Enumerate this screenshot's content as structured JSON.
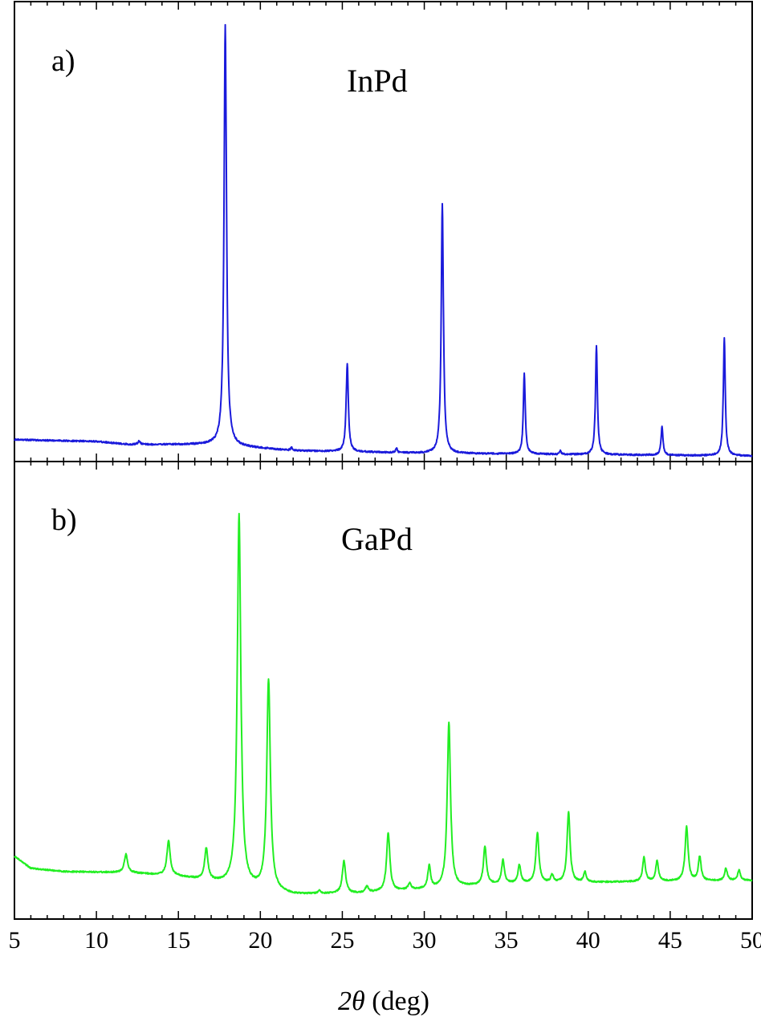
{
  "chart_data": {
    "type": "line",
    "xlabel_symbol": "2θ",
    "xlabel_unit": " (deg)",
    "xlim": [
      5,
      50
    ],
    "x_ticks": [
      5,
      10,
      15,
      20,
      25,
      30,
      35,
      40,
      45,
      50
    ],
    "x_tick_labels": [
      "5",
      "10",
      "15",
      "20",
      "25",
      "30",
      "35",
      "40",
      "45",
      "50"
    ],
    "minor_tick_step": 1,
    "yticks_shown": false,
    "grid": false,
    "panels": [
      {
        "letter": "a)",
        "title": "InPd",
        "color": "#1a1adb",
        "ylim": [
          0,
          100
        ],
        "baseline": [
          [
            5,
            3.7
          ],
          [
            10,
            3.3
          ],
          [
            12,
            2.6
          ],
          [
            17,
            2.6
          ],
          [
            22,
            1.2
          ],
          [
            30,
            0.6
          ],
          [
            40,
            0.3
          ],
          [
            50,
            0
          ]
        ],
        "peaks": [
          {
            "x": 12.6,
            "h": 0.8,
            "w": 0.08
          },
          {
            "x": 17.86,
            "h": 96.0,
            "w": 0.09
          },
          {
            "x": 21.9,
            "h": 0.7,
            "w": 0.06
          },
          {
            "x": 25.3,
            "h": 20.0,
            "w": 0.08
          },
          {
            "x": 28.3,
            "h": 1.0,
            "w": 0.06
          },
          {
            "x": 31.1,
            "h": 57.0,
            "w": 0.08
          },
          {
            "x": 36.1,
            "h": 18.5,
            "w": 0.07
          },
          {
            "x": 38.3,
            "h": 0.8,
            "w": 0.06
          },
          {
            "x": 40.5,
            "h": 25.0,
            "w": 0.07
          },
          {
            "x": 44.5,
            "h": 6.5,
            "w": 0.07
          },
          {
            "x": 48.3,
            "h": 27.0,
            "w": 0.07
          }
        ]
      },
      {
        "letter": "b)",
        "title": "GaPd",
        "color": "#22ee22",
        "ylim": [
          0,
          100
        ],
        "baseline": [
          [
            5,
            11.0
          ],
          [
            6,
            8.0
          ],
          [
            8,
            7.2
          ],
          [
            12,
            6.9
          ],
          [
            15,
            6.0
          ],
          [
            18,
            4.0
          ],
          [
            22,
            1.5
          ],
          [
            26,
            1.8
          ],
          [
            30,
            2.8
          ],
          [
            35,
            4.2
          ],
          [
            40,
            4.5
          ],
          [
            45,
            4.8
          ],
          [
            50,
            5.0
          ]
        ],
        "peaks": [
          {
            "x": 11.8,
            "h": 4.5,
            "w": 0.12
          },
          {
            "x": 14.4,
            "h": 8.5,
            "w": 0.12
          },
          {
            "x": 16.7,
            "h": 7.8,
            "w": 0.12
          },
          {
            "x": 18.7,
            "h": 92.0,
            "w": 0.13
          },
          {
            "x": 20.5,
            "h": 52.0,
            "w": 0.13
          },
          {
            "x": 23.6,
            "h": 0.7,
            "w": 0.1
          },
          {
            "x": 25.1,
            "h": 8.0,
            "w": 0.12
          },
          {
            "x": 26.5,
            "h": 1.6,
            "w": 0.1
          },
          {
            "x": 27.8,
            "h": 14.5,
            "w": 0.12
          },
          {
            "x": 29.1,
            "h": 1.6,
            "w": 0.1
          },
          {
            "x": 30.3,
            "h": 5.5,
            "w": 0.1
          },
          {
            "x": 31.5,
            "h": 41.0,
            "w": 0.12
          },
          {
            "x": 33.7,
            "h": 9.5,
            "w": 0.11
          },
          {
            "x": 34.8,
            "h": 5.8,
            "w": 0.1
          },
          {
            "x": 35.8,
            "h": 4.5,
            "w": 0.1
          },
          {
            "x": 36.9,
            "h": 12.5,
            "w": 0.11
          },
          {
            "x": 37.8,
            "h": 1.8,
            "w": 0.1
          },
          {
            "x": 38.8,
            "h": 17.5,
            "w": 0.11
          },
          {
            "x": 39.8,
            "h": 2.5,
            "w": 0.1
          },
          {
            "x": 43.4,
            "h": 6.0,
            "w": 0.1
          },
          {
            "x": 44.2,
            "h": 5.0,
            "w": 0.1
          },
          {
            "x": 46.0,
            "h": 13.5,
            "w": 0.11
          },
          {
            "x": 46.8,
            "h": 6.0,
            "w": 0.1
          },
          {
            "x": 48.4,
            "h": 3.0,
            "w": 0.1
          },
          {
            "x": 49.2,
            "h": 2.5,
            "w": 0.1
          }
        ]
      }
    ]
  }
}
